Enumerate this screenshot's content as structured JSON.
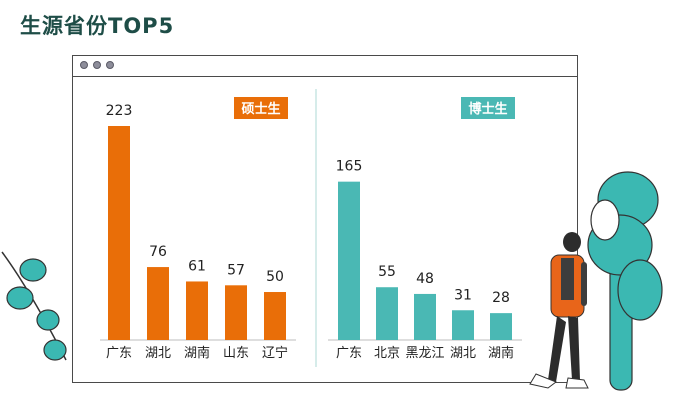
{
  "title": "生源省份TOP5",
  "colors": {
    "master": "#e96e08",
    "doctor": "#4ab8b4",
    "axis": "#666666",
    "text": "#222222"
  },
  "chart_data": [
    {
      "type": "bar",
      "legend": "硕士生",
      "color": "#e96e08",
      "categories": [
        "广东",
        "湖北",
        "湖南",
        "山东",
        "辽宁"
      ],
      "values": [
        223,
        76,
        61,
        57,
        50
      ],
      "ylim": [
        0,
        223
      ]
    },
    {
      "type": "bar",
      "legend": "博士生",
      "color": "#4ab8b4",
      "categories": [
        "广东",
        "北京",
        "黑龙江",
        "湖北",
        "湖南"
      ],
      "values": [
        165,
        55,
        48,
        31,
        28
      ],
      "ylim": [
        0,
        223
      ]
    }
  ]
}
